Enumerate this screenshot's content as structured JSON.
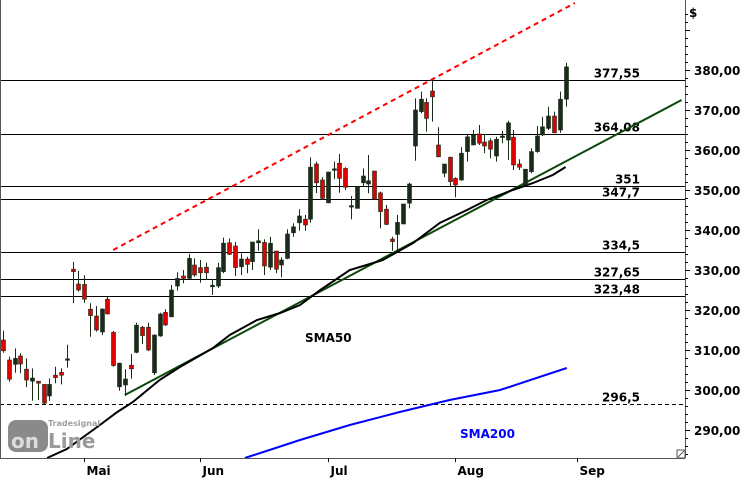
{
  "chart_data": {
    "type": "candlestick",
    "currency_label": "$",
    "ylim": [
      284,
      394
    ],
    "yticks": [
      290,
      300,
      310,
      320,
      330,
      340,
      350,
      360,
      370,
      380
    ],
    "ytick_labels": [
      "290,00",
      "300,00",
      "310,00",
      "320,00",
      "330,00",
      "340,00",
      "350,00",
      "360,00",
      "370,00",
      "380,00"
    ],
    "months": [
      {
        "label": "Mai",
        "index": 14
      },
      {
        "label": "Jun",
        "index": 34
      },
      {
        "label": "Jul",
        "index": 56
      },
      {
        "label": "Aug",
        "index": 78
      },
      {
        "label": "Sep",
        "index": 99
      }
    ],
    "candles_ohlc": [
      [
        312.5,
        314.8,
        309.3,
        309.8
      ],
      [
        307.5,
        308.3,
        302.1,
        302.7
      ],
      [
        306.4,
        310.4,
        304.3,
        307.9
      ],
      [
        308.5,
        309.2,
        304.2,
        306.5
      ],
      [
        305.2,
        307.9,
        300.7,
        302.5
      ],
      [
        302.2,
        305.4,
        297.3,
        303.0
      ],
      [
        302.2,
        302.2,
        297.5,
        301.7
      ],
      [
        301.4,
        301.4,
        296.3,
        296.7
      ],
      [
        298.5,
        302.9,
        297.3,
        301.4
      ],
      [
        303.7,
        305.8,
        301.7,
        303.1
      ],
      [
        304.4,
        305.4,
        301.4,
        303.7
      ],
      [
        307.5,
        311.3,
        305.6,
        307.8
      ],
      [
        330.2,
        332.0,
        321.7,
        329.6
      ],
      [
        326.5,
        329.8,
        324.6,
        325.0
      ],
      [
        326.4,
        328.7,
        321.8,
        322.7
      ],
      [
        320.2,
        321.7,
        313.3,
        318.6
      ],
      [
        318.5,
        321.0,
        314.6,
        315.0
      ],
      [
        314.5,
        320.4,
        313.75,
        320.25
      ],
      [
        322.7,
        323.3,
        319.0,
        319.0
      ],
      [
        314.4,
        314.75,
        305.8,
        306.1
      ],
      [
        300.8,
        306.8,
        299.8,
        306.7
      ],
      [
        301.25,
        305.2,
        298.5,
        302.75
      ],
      [
        306.2,
        309.0,
        302.8,
        305.3
      ],
      [
        309.4,
        316.8,
        309.2,
        316.2
      ],
      [
        315.7,
        316.0,
        311.5,
        313.6
      ],
      [
        315.7,
        316.8,
        309.75,
        310.0
      ],
      [
        304.3,
        313.9,
        303.75,
        313.75
      ],
      [
        313.5,
        319.3,
        313.3,
        319.0
      ],
      [
        319.4,
        320.2,
        316.0,
        316.25
      ],
      [
        318.3,
        326.25,
        318.2,
        325.0
      ],
      [
        326.0,
        329.4,
        324.8,
        327.9
      ],
      [
        328.5,
        330.0,
        326.7,
        327.9
      ],
      [
        327.9,
        334.0,
        327.7,
        332.9
      ],
      [
        331.25,
        332.9,
        328.3,
        328.75
      ],
      [
        330.6,
        332.5,
        326.8,
        329.3
      ],
      [
        330.7,
        331.8,
        327.5,
        329.3
      ],
      [
        325.8,
        327.7,
        323.75,
        326.2
      ],
      [
        326.0,
        331.8,
        325.5,
        330.6
      ],
      [
        329.6,
        338.1,
        329.2,
        336.7
      ],
      [
        336.8,
        337.9,
        333.75,
        333.9
      ],
      [
        336.0,
        337.0,
        328.5,
        330.6
      ],
      [
        330.8,
        334.2,
        328.75,
        332.75
      ],
      [
        332.75,
        333.3,
        329.2,
        331.4
      ],
      [
        332.1,
        337.0,
        330.0,
        337.0
      ],
      [
        336.8,
        340.2,
        334.8,
        337.3
      ],
      [
        336.9,
        337.7,
        328.75,
        331.0
      ],
      [
        330.7,
        338.3,
        330.0,
        336.7
      ],
      [
        334.75,
        334.75,
        329.2,
        330.2
      ],
      [
        331.25,
        333.2,
        328.2,
        332.5
      ],
      [
        332.9,
        340.2,
        332.7,
        339.0
      ],
      [
        339.3,
        341.7,
        338.3,
        340.8
      ],
      [
        341.8,
        345.2,
        339.8,
        343.5
      ],
      [
        342.7,
        343.75,
        339.8,
        341.25
      ],
      [
        342.7,
        358.2,
        341.8,
        355.7
      ],
      [
        356.5,
        357.1,
        349.2,
        351.8
      ],
      [
        352.5,
        353.2,
        347.5,
        347.9
      ],
      [
        346.8,
        354.5,
        346.7,
        354.5
      ],
      [
        355.0,
        357.1,
        352.7,
        355.3
      ],
      [
        356.7,
        359.0,
        349.3,
        352.9
      ],
      [
        355.4,
        355.7,
        350.0,
        350.7
      ],
      [
        346.0,
        348.5,
        342.7,
        346.1
      ],
      [
        345.4,
        350.8,
        345.4,
        350.8
      ],
      [
        351.8,
        355.4,
        351.0,
        353.5
      ],
      [
        351.5,
        358.75,
        349.2,
        352.3
      ],
      [
        354.75,
        354.75,
        347.7,
        347.7
      ],
      [
        349.3,
        349.6,
        340.4,
        344.6
      ],
      [
        345.2,
        346.25,
        341.25,
        341.4
      ],
      [
        337.75,
        338.3,
        334.8,
        337.1
      ],
      [
        338.9,
        343.75,
        334.8,
        341.9
      ],
      [
        341.5,
        346.5,
        341.5,
        346.5
      ],
      [
        346.7,
        351.8,
        345.4,
        351.5
      ],
      [
        361.0,
        372.9,
        357.3,
        370.0
      ],
      [
        369.6,
        374.6,
        369.2,
        372.7
      ],
      [
        371.9,
        372.9,
        364.6,
        367.9
      ],
      [
        374.75,
        377.5,
        367.1,
        373.3
      ],
      [
        361.25,
        365.7,
        358.2,
        358.3
      ],
      [
        354.2,
        356.5,
        353.2,
        356.5
      ],
      [
        358.2,
        358.3,
        351.0,
        352.1
      ],
      [
        352.9,
        353.2,
        348.2,
        351.25
      ],
      [
        352.5,
        360.7,
        352.3,
        359.2
      ],
      [
        359.6,
        363.75,
        357.1,
        363.3
      ],
      [
        361.25,
        365.0,
        361.25,
        363.75
      ],
      [
        364.0,
        366.25,
        361.25,
        361.7
      ],
      [
        362.0,
        363.75,
        359.2,
        361.0
      ],
      [
        362.3,
        362.9,
        357.9,
        360.2
      ],
      [
        358.5,
        363.3,
        357.1,
        362.7
      ],
      [
        363.2,
        364.8,
        361.7,
        363.5
      ],
      [
        362.5,
        367.3,
        357.5,
        366.8
      ],
      [
        363.2,
        365.0,
        355.0,
        356.25
      ],
      [
        356.5,
        357.7,
        355.0,
        355.7
      ],
      [
        351.25,
        355.2,
        351.25,
        355.2
      ],
      [
        354.6,
        360.4,
        354.2,
        359.6
      ],
      [
        359.6,
        366.0,
        359.3,
        363.5
      ],
      [
        363.75,
        368.3,
        363.5,
        365.8
      ],
      [
        365.4,
        370.8,
        365.0,
        368.5
      ],
      [
        368.5,
        369.6,
        364.2,
        364.3
      ],
      [
        365.0,
        374.6,
        364.3,
        372.7
      ],
      [
        372.7,
        381.8,
        370.8,
        380.8
      ]
    ],
    "horizontal_levels": [
      {
        "value": 377.55,
        "label": "377,55",
        "style": "solid"
      },
      {
        "value": 364.08,
        "label": "364,08",
        "style": "solid"
      },
      {
        "value": 351,
        "label": "351",
        "style": "solid"
      },
      {
        "value": 347.7,
        "label": "347,7",
        "style": "solid"
      },
      {
        "value": 334.5,
        "label": "334,5",
        "style": "solid"
      },
      {
        "value": 327.65,
        "label": "327,65",
        "style": "solid"
      },
      {
        "value": 323.48,
        "label": "323,48",
        "style": "solid"
      },
      {
        "value": 296.5,
        "label": "296,5",
        "style": "dashed"
      }
    ],
    "trendlines": [
      {
        "color": "#ff0000",
        "style": "dashed",
        "points": [
          [
            19,
            335
          ],
          [
            98.6,
            396.75
          ]
        ]
      },
      {
        "color": "#0b4a0b",
        "style": "solid",
        "points": [
          [
            21,
            298.75
          ],
          [
            117,
            372.5
          ]
        ]
      }
    ],
    "series": [
      {
        "name": "SMA50",
        "color": "#000000",
        "points": [
          [
            7.6,
            283
          ],
          [
            11,
            285.25
          ],
          [
            16.7,
            291.25
          ],
          [
            19.7,
            294.5
          ],
          [
            22.4,
            297
          ],
          [
            27,
            302.5
          ],
          [
            30.5,
            305.75
          ],
          [
            36.2,
            310.5
          ],
          [
            39.1,
            313.75
          ],
          [
            43.8,
            317.5
          ],
          [
            47.8,
            319.25
          ],
          [
            51.2,
            321.25
          ],
          [
            54.7,
            325
          ],
          [
            59.8,
            330
          ],
          [
            65.5,
            332.5
          ],
          [
            70.7,
            336.75
          ],
          [
            75.3,
            341.75
          ],
          [
            80,
            345
          ],
          [
            83.4,
            347.5
          ],
          [
            87.9,
            350
          ],
          [
            91.4,
            351.75
          ],
          [
            94.8,
            353.75
          ],
          [
            97,
            355.75
          ]
        ]
      },
      {
        "name": "SMA200",
        "color": "#0000ff",
        "points": [
          [
            41.7,
            283
          ],
          [
            51.2,
            287.5
          ],
          [
            59.8,
            291.25
          ],
          [
            68.4,
            294.5
          ],
          [
            77,
            297.5
          ],
          [
            85.7,
            300
          ],
          [
            97.2,
            305.5
          ]
        ]
      }
    ],
    "colors": {
      "up": "#1a2b1a",
      "down": "#e00000",
      "axis": "#000000"
    }
  },
  "logo": {
    "brand": "Tradesignal",
    "word": "online"
  }
}
